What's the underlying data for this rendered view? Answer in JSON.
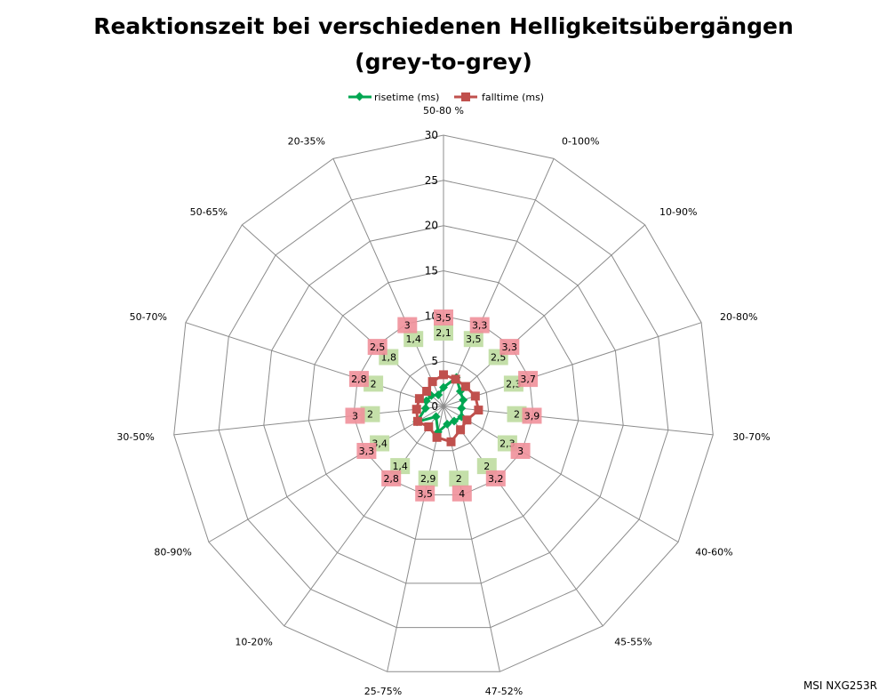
{
  "chart_data": {
    "type": "radar",
    "title": "Reaktionszeit bei verschiedenen Helligkeitsübergängen",
    "subtitle": "(grey-to-grey)",
    "categories": [
      "50-80 %",
      "0-100%",
      "10-90%",
      "20-80%",
      "30-70%",
      "40-60%",
      "45-55%",
      "47-52%",
      "25-75%",
      "10-20%",
      "80-90%",
      "30-50%",
      "50-70%",
      "50-65%",
      "20-35%"
    ],
    "series": [
      {
        "name": "risetime (ms)",
        "color": "#00a651",
        "label_bg": "#c4dfa9",
        "values": [
          2.1,
          3.5,
          2.5,
          2.3,
          2,
          2.3,
          2,
          2,
          2.9,
          1.4,
          3.4,
          2,
          2,
          1.8,
          1.4
        ],
        "labels": [
          "2,1",
          "3,5",
          "2,5",
          "2,3",
          "2",
          "2,3",
          "2",
          "2",
          "2,9",
          "1,4",
          "3,4",
          "2",
          "2",
          "1,8",
          "1,4"
        ]
      },
      {
        "name": "falltime (ms)",
        "color": "#c0504d",
        "label_bg": "#f0909a",
        "values": [
          3.5,
          3.3,
          3.3,
          3.7,
          3.9,
          3,
          3.2,
          4,
          3.5,
          2.8,
          3.3,
          3,
          2.8,
          2.5,
          3
        ],
        "labels": [
          "3,5",
          "3,3",
          "3,3",
          "3,7",
          "3,9",
          "3",
          "3,2",
          "4",
          "3,5",
          "2,8",
          "3,3",
          "3",
          "2,8",
          "2,5",
          "3"
        ]
      }
    ],
    "axis": {
      "min": 0,
      "max": 30,
      "step": 5,
      "ticks": [
        "0",
        "5",
        "10",
        "15",
        "20",
        "25",
        "30"
      ]
    },
    "grid": true,
    "legend_position": "top-center",
    "source_text": "MSI NXG253R"
  }
}
